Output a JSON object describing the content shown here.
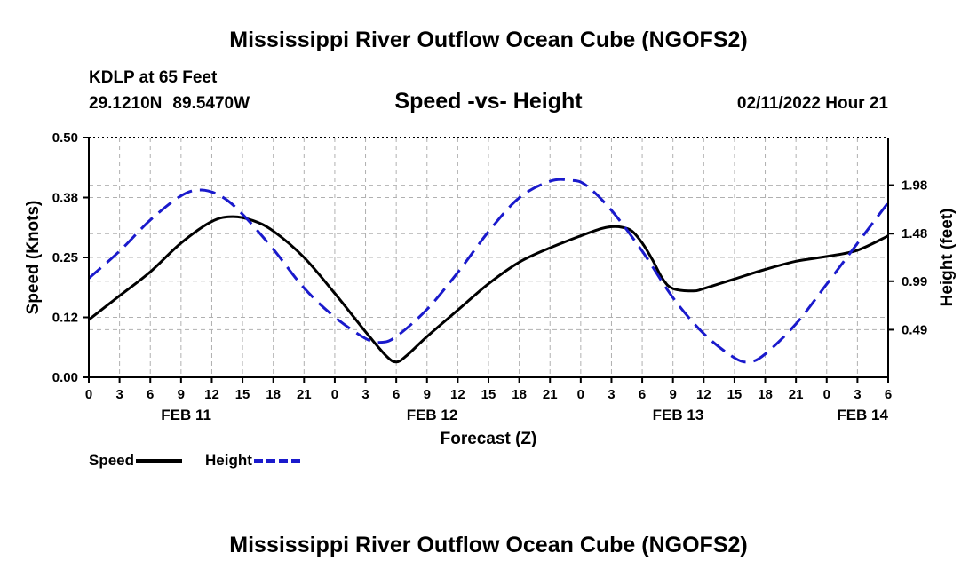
{
  "header": {
    "title": "Mississippi River Outflow Ocean Cube (NGOFS2)",
    "station": "KDLP at 65 Feet",
    "lat": "29.1210N",
    "lon": "89.5470W",
    "subtitle": "Speed -vs- Height",
    "datetime": "02/11/2022 Hour 21"
  },
  "footer": {
    "title": "Mississippi River Outflow Ocean Cube (NGOFS2)"
  },
  "legend": {
    "speed_label": "Speed",
    "height_label": "Height"
  },
  "colors": {
    "speed": "#000000",
    "height": "#1a1acc",
    "grid": "#b0b0b0"
  },
  "chart_data": {
    "type": "line",
    "title": "Speed -vs- Height",
    "xlabel": "Forecast (Z)",
    "ylabel": "Speed (Knots)",
    "y2label": "Height (feet)",
    "xlim": [
      0,
      78
    ],
    "ylim": [
      0,
      0.5
    ],
    "y2lim": [
      0,
      2.47
    ],
    "x_ticks": [
      0,
      3,
      6,
      9,
      12,
      15,
      18,
      21,
      24,
      27,
      30,
      33,
      36,
      39,
      42,
      45,
      48,
      51,
      54,
      57,
      60,
      63,
      66,
      69,
      72,
      75,
      78
    ],
    "x_tick_labels": [
      "0",
      "3",
      "6",
      "9",
      "12",
      "15",
      "18",
      "21",
      "0",
      "3",
      "6",
      "9",
      "12",
      "15",
      "18",
      "21",
      "0",
      "3",
      "6",
      "9",
      "12",
      "15",
      "18",
      "21",
      "0",
      "3",
      "6"
    ],
    "day_labels": [
      {
        "label": "FEB 11",
        "x": 9.5
      },
      {
        "label": "FEB 12",
        "x": 33.5
      },
      {
        "label": "FEB 13",
        "x": 57.5
      },
      {
        "label": "FEB 14",
        "x": 75.5
      }
    ],
    "y_ticks": [
      0,
      0.125,
      0.25,
      0.375,
      0.5
    ],
    "y_tick_labels": [
      "0.00",
      "0.12",
      "0.25",
      "0.38",
      "0.50"
    ],
    "y2_ticks": [
      0.49,
      0.99,
      1.48,
      1.98
    ],
    "y2_tick_labels": [
      "0.49",
      "0.99",
      "1.48",
      "1.98"
    ],
    "grid": true,
    "series": [
      {
        "name": "Speed",
        "axis": "left",
        "style": "solid",
        "x": [
          0,
          3,
          6,
          9,
          12,
          14,
          16,
          18,
          21,
          24,
          27,
          29,
          30,
          31,
          33,
          36,
          39,
          42,
          45,
          48,
          50,
          51,
          52,
          53,
          54,
          55,
          56,
          57,
          59,
          60,
          63,
          66,
          69,
          72,
          75,
          78
        ],
        "y": [
          0.12,
          0.17,
          0.22,
          0.28,
          0.325,
          0.335,
          0.327,
          0.305,
          0.25,
          0.175,
          0.095,
          0.045,
          0.032,
          0.045,
          0.085,
          0.14,
          0.195,
          0.24,
          0.27,
          0.295,
          0.31,
          0.314,
          0.313,
          0.305,
          0.28,
          0.245,
          0.205,
          0.185,
          0.18,
          0.185,
          0.205,
          0.225,
          0.242,
          0.252,
          0.265,
          0.295
        ]
      },
      {
        "name": "Height",
        "axis": "right",
        "style": "dashed",
        "x": [
          0,
          3,
          6,
          9,
          11,
          13,
          15,
          18,
          21,
          24,
          27,
          28.5,
          30,
          33,
          36,
          39,
          42,
          45,
          47,
          48.5,
          51,
          54,
          57,
          60,
          63,
          64.5,
          66,
          69,
          72,
          75,
          78
        ],
        "y": [
          1.02,
          1.3,
          1.62,
          1.87,
          1.93,
          1.86,
          1.68,
          1.32,
          0.92,
          0.62,
          0.4,
          0.36,
          0.42,
          0.7,
          1.08,
          1.5,
          1.85,
          2.02,
          2.03,
          1.98,
          1.72,
          1.3,
          0.82,
          0.45,
          0.2,
          0.16,
          0.24,
          0.55,
          0.96,
          1.38,
          1.8
        ]
      }
    ]
  }
}
